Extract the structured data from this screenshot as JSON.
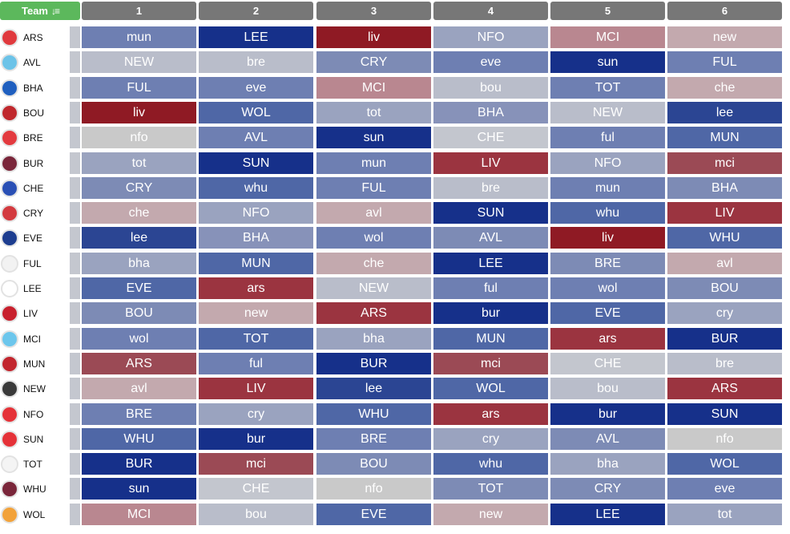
{
  "header": {
    "team_label": "Team",
    "sort_icon": "sort-desc-icon",
    "columns": [
      "1",
      "2",
      "3",
      "4",
      "5",
      "6"
    ]
  },
  "colors": {
    "team_header": "#5cb85c",
    "column_header": "#777777",
    "difficulty_palette": {
      "very_hard": "#8f1a24",
      "hard": "#9b4a55",
      "medium_hard": "#b98790",
      "light": "#c3a9ae",
      "neutral": "#c9c9c9",
      "grey_blue": "#b9bdca",
      "pale_blue": "#9aa3bf",
      "mid_blue": "#6e7fb2",
      "blue": "#4f67a6",
      "strong_blue": "#2b4593",
      "very_easy": "#16308a"
    }
  },
  "teams": [
    {
      "name": "ARS",
      "badge": "#e03a3e",
      "fixtures": [
        {
          "t": "mun",
          "c": "#6e7fb2"
        },
        {
          "t": "LEE",
          "c": "#16308a"
        },
        {
          "t": "liv",
          "c": "#8f1a24"
        },
        {
          "t": "NFO",
          "c": "#9aa3bf"
        },
        {
          "t": "MCI",
          "c": "#b98790"
        },
        {
          "t": "new",
          "c": "#c3a9ae"
        }
      ]
    },
    {
      "name": "AVL",
      "badge": "#6cc3e8",
      "fixtures": [
        {
          "t": "NEW",
          "c": "#b9bdca"
        },
        {
          "t": "bre",
          "c": "#b9bdca"
        },
        {
          "t": "CRY",
          "c": "#7d8bb5"
        },
        {
          "t": "eve",
          "c": "#6e7fb2"
        },
        {
          "t": "sun",
          "c": "#16308a"
        },
        {
          "t": "FUL",
          "c": "#6e7fb2"
        }
      ]
    },
    {
      "name": "BHA",
      "badge": "#1f5fbf",
      "fixtures": [
        {
          "t": "FUL",
          "c": "#6e7fb2"
        },
        {
          "t": "eve",
          "c": "#6e7fb2"
        },
        {
          "t": "MCI",
          "c": "#b98790"
        },
        {
          "t": "bou",
          "c": "#b9bdca"
        },
        {
          "t": "TOT",
          "c": "#6e7fb2"
        },
        {
          "t": "che",
          "c": "#c3a9ae"
        }
      ]
    },
    {
      "name": "BOU",
      "badge": "#c0282d",
      "fixtures": [
        {
          "t": "liv",
          "c": "#8f1a24"
        },
        {
          "t": "WOL",
          "c": "#4f67a6"
        },
        {
          "t": "tot",
          "c": "#9aa3bf"
        },
        {
          "t": "BHA",
          "c": "#8792b9"
        },
        {
          "t": "NEW",
          "c": "#b9bdca"
        },
        {
          "t": "lee",
          "c": "#2b4593"
        }
      ]
    },
    {
      "name": "BRE",
      "badge": "#e33a3f",
      "fixtures": [
        {
          "t": "nfo",
          "c": "#c9c9c9"
        },
        {
          "t": "AVL",
          "c": "#6e7fb2"
        },
        {
          "t": "sun",
          "c": "#16308a"
        },
        {
          "t": "CHE",
          "c": "#c3c6ce"
        },
        {
          "t": "ful",
          "c": "#6e7fb2"
        },
        {
          "t": "MUN",
          "c": "#4f67a6"
        }
      ]
    },
    {
      "name": "BUR",
      "badge": "#7a263a",
      "fixtures": [
        {
          "t": "tot",
          "c": "#9aa3bf"
        },
        {
          "t": "SUN",
          "c": "#16308a"
        },
        {
          "t": "mun",
          "c": "#6e7fb2"
        },
        {
          "t": "LIV",
          "c": "#9b3440"
        },
        {
          "t": "NFO",
          "c": "#9aa3bf"
        },
        {
          "t": "mci",
          "c": "#9b4a55"
        }
      ]
    },
    {
      "name": "CHE",
      "badge": "#2a50b5",
      "fixtures": [
        {
          "t": "CRY",
          "c": "#7d8bb5"
        },
        {
          "t": "whu",
          "c": "#4f67a6"
        },
        {
          "t": "FUL",
          "c": "#6e7fb2"
        },
        {
          "t": "bre",
          "c": "#b9bdca"
        },
        {
          "t": "mun",
          "c": "#6e7fb2"
        },
        {
          "t": "BHA",
          "c": "#7d8bb5"
        }
      ]
    },
    {
      "name": "CRY",
      "badge": "#d33a3f",
      "fixtures": [
        {
          "t": "che",
          "c": "#c3a9ae"
        },
        {
          "t": "NFO",
          "c": "#9aa3bf"
        },
        {
          "t": "avl",
          "c": "#c3a9ae"
        },
        {
          "t": "SUN",
          "c": "#16308a"
        },
        {
          "t": "whu",
          "c": "#4f67a6"
        },
        {
          "t": "LIV",
          "c": "#9b3440"
        }
      ]
    },
    {
      "name": "EVE",
      "badge": "#1d3d8f",
      "fixtures": [
        {
          "t": "lee",
          "c": "#2b4593"
        },
        {
          "t": "BHA",
          "c": "#8792b9"
        },
        {
          "t": "wol",
          "c": "#6e7fb2"
        },
        {
          "t": "AVL",
          "c": "#7d8bb5"
        },
        {
          "t": "liv",
          "c": "#8f1a24"
        },
        {
          "t": "WHU",
          "c": "#4f67a6"
        }
      ]
    },
    {
      "name": "FUL",
      "badge": "#f2f2f2",
      "fixtures": [
        {
          "t": "bha",
          "c": "#9aa3bf"
        },
        {
          "t": "MUN",
          "c": "#4f67a6"
        },
        {
          "t": "che",
          "c": "#c3a9ae"
        },
        {
          "t": "LEE",
          "c": "#16308a"
        },
        {
          "t": "BRE",
          "c": "#7d8bb5"
        },
        {
          "t": "avl",
          "c": "#c3a9ae"
        }
      ]
    },
    {
      "name": "LEE",
      "badge": "#ffffff",
      "fixtures": [
        {
          "t": "EVE",
          "c": "#4f67a6"
        },
        {
          "t": "ars",
          "c": "#9b3440"
        },
        {
          "t": "NEW",
          "c": "#b9bdca"
        },
        {
          "t": "ful",
          "c": "#6e7fb2"
        },
        {
          "t": "wol",
          "c": "#6e7fb2"
        },
        {
          "t": "BOU",
          "c": "#7d8bb5"
        }
      ]
    },
    {
      "name": "LIV",
      "badge": "#c8202d",
      "fixtures": [
        {
          "t": "BOU",
          "c": "#7d8bb5"
        },
        {
          "t": "new",
          "c": "#c3a9ae"
        },
        {
          "t": "ARS",
          "c": "#9b3440"
        },
        {
          "t": "bur",
          "c": "#16308a"
        },
        {
          "t": "EVE",
          "c": "#4f67a6"
        },
        {
          "t": "cry",
          "c": "#9aa3bf"
        }
      ]
    },
    {
      "name": "MCI",
      "badge": "#6cc6ec",
      "fixtures": [
        {
          "t": "wol",
          "c": "#6e7fb2"
        },
        {
          "t": "TOT",
          "c": "#4f67a6"
        },
        {
          "t": "bha",
          "c": "#9aa3bf"
        },
        {
          "t": "MUN",
          "c": "#4f67a6"
        },
        {
          "t": "ars",
          "c": "#9b3440"
        },
        {
          "t": "BUR",
          "c": "#16308a"
        }
      ]
    },
    {
      "name": "MUN",
      "badge": "#c2262e",
      "fixtures": [
        {
          "t": "ARS",
          "c": "#9b4a55"
        },
        {
          "t": "ful",
          "c": "#6e7fb2"
        },
        {
          "t": "BUR",
          "c": "#16308a"
        },
        {
          "t": "mci",
          "c": "#9b4a55"
        },
        {
          "t": "CHE",
          "c": "#c3c6ce"
        },
        {
          "t": "bre",
          "c": "#b9bdca"
        }
      ]
    },
    {
      "name": "NEW",
      "badge": "#3a3a3a",
      "fixtures": [
        {
          "t": "avl",
          "c": "#c3a9ae"
        },
        {
          "t": "LIV",
          "c": "#9b3440"
        },
        {
          "t": "lee",
          "c": "#2b4593"
        },
        {
          "t": "WOL",
          "c": "#4f67a6"
        },
        {
          "t": "bou",
          "c": "#b9bdca"
        },
        {
          "t": "ARS",
          "c": "#9b3440"
        }
      ]
    },
    {
      "name": "NFO",
      "badge": "#e53238",
      "fixtures": [
        {
          "t": "BRE",
          "c": "#6e7fb2"
        },
        {
          "t": "cry",
          "c": "#9aa3bf"
        },
        {
          "t": "WHU",
          "c": "#4f67a6"
        },
        {
          "t": "ars",
          "c": "#9b3440"
        },
        {
          "t": "bur",
          "c": "#16308a"
        },
        {
          "t": "SUN",
          "c": "#16308a"
        }
      ]
    },
    {
      "name": "SUN",
      "badge": "#e53238",
      "fixtures": [
        {
          "t": "WHU",
          "c": "#4f67a6"
        },
        {
          "t": "bur",
          "c": "#16308a"
        },
        {
          "t": "BRE",
          "c": "#6e7fb2"
        },
        {
          "t": "cry",
          "c": "#9aa3bf"
        },
        {
          "t": "AVL",
          "c": "#7d8bb5"
        },
        {
          "t": "nfo",
          "c": "#c9c9c9"
        }
      ]
    },
    {
      "name": "TOT",
      "badge": "#f4f4f4",
      "fixtures": [
        {
          "t": "BUR",
          "c": "#16308a"
        },
        {
          "t": "mci",
          "c": "#9b4a55"
        },
        {
          "t": "BOU",
          "c": "#7d8bb5"
        },
        {
          "t": "whu",
          "c": "#4f67a6"
        },
        {
          "t": "bha",
          "c": "#9aa3bf"
        },
        {
          "t": "WOL",
          "c": "#4f67a6"
        }
      ]
    },
    {
      "name": "WHU",
      "badge": "#7a263a",
      "fixtures": [
        {
          "t": "sun",
          "c": "#16308a"
        },
        {
          "t": "CHE",
          "c": "#c3c6ce"
        },
        {
          "t": "nfo",
          "c": "#c9c9c9"
        },
        {
          "t": "TOT",
          "c": "#7d8bb5"
        },
        {
          "t": "CRY",
          "c": "#7d8bb5"
        },
        {
          "t": "eve",
          "c": "#6e7fb2"
        }
      ]
    },
    {
      "name": "WOL",
      "badge": "#f2a23a",
      "fixtures": [
        {
          "t": "MCI",
          "c": "#b98790"
        },
        {
          "t": "bou",
          "c": "#b9bdca"
        },
        {
          "t": "EVE",
          "c": "#4f67a6"
        },
        {
          "t": "new",
          "c": "#c3a9ae"
        },
        {
          "t": "LEE",
          "c": "#16308a"
        },
        {
          "t": "tot",
          "c": "#9aa3bf"
        }
      ]
    }
  ]
}
